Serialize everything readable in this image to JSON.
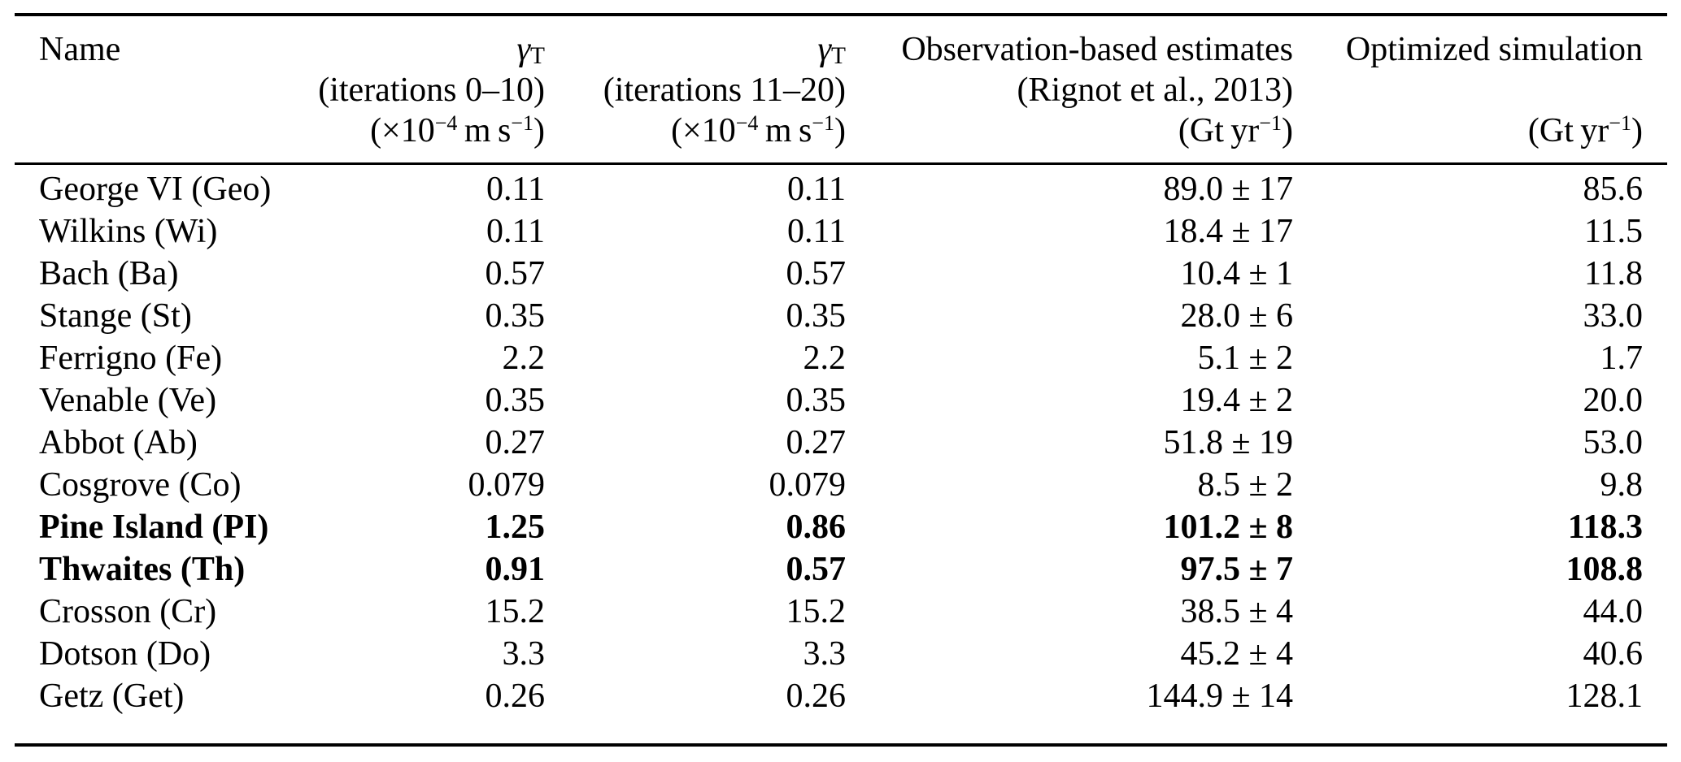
{
  "page": {
    "background": "#ffffff",
    "text_color": "#000000"
  },
  "table": {
    "header": {
      "name": "Name",
      "gamma_symbol": "γ",
      "gamma_sub": "T",
      "col2_line2": "(iterations 0–10)",
      "col3_line2": "(iterations 11–20)",
      "ms_unit_prefix": "(×10",
      "ms_unit_exp1": "−4",
      "ms_unit_mid": " m s",
      "ms_unit_exp2": "−1",
      "ms_unit_close": ")",
      "col4_line1": "Observation-based estimates",
      "col4_line2": "(Rignot et al., 2013)",
      "col5_line1": "Optimized simulation",
      "gt_unit_prefix": "(Gt yr",
      "gt_unit_exp": "−1",
      "gt_unit_close": ")"
    },
    "rows": [
      {
        "name": "George VI (Geo)",
        "gamma_0_10": "0.11",
        "gamma_11_20": "0.11",
        "obs": "89.0 ± 17",
        "sim": "85.6",
        "bold": false
      },
      {
        "name": "Wilkins (Wi)",
        "gamma_0_10": "0.11",
        "gamma_11_20": "0.11",
        "obs": "18.4 ± 17",
        "sim": "11.5",
        "bold": false
      },
      {
        "name": "Bach (Ba)",
        "gamma_0_10": "0.57",
        "gamma_11_20": "0.57",
        "obs": "10.4 ± 1",
        "sim": "11.8",
        "bold": false
      },
      {
        "name": "Stange (St)",
        "gamma_0_10": "0.35",
        "gamma_11_20": "0.35",
        "obs": "28.0 ± 6",
        "sim": "33.0",
        "bold": false
      },
      {
        "name": "Ferrigno (Fe)",
        "gamma_0_10": "2.2",
        "gamma_11_20": "2.2",
        "obs": "5.1 ± 2",
        "sim": "1.7",
        "bold": false
      },
      {
        "name": "Venable (Ve)",
        "gamma_0_10": "0.35",
        "gamma_11_20": "0.35",
        "obs": "19.4 ± 2",
        "sim": "20.0",
        "bold": false
      },
      {
        "name": "Abbot (Ab)",
        "gamma_0_10": "0.27",
        "gamma_11_20": "0.27",
        "obs": "51.8 ± 19",
        "sim": "53.0",
        "bold": false
      },
      {
        "name": "Cosgrove (Co)",
        "gamma_0_10": "0.079",
        "gamma_11_20": "0.079",
        "obs": "8.5 ± 2",
        "sim": "9.8",
        "bold": false
      },
      {
        "name": "Pine Island (PI)",
        "gamma_0_10": "1.25",
        "gamma_11_20": "0.86",
        "obs": "101.2 ± 8",
        "sim": "118.3",
        "bold": true
      },
      {
        "name": "Thwaites (Th)",
        "gamma_0_10": "0.91",
        "gamma_11_20": "0.57",
        "obs": "97.5 ± 7",
        "sim": "108.8",
        "bold": true
      },
      {
        "name": "Crosson (Cr)",
        "gamma_0_10": "15.2",
        "gamma_11_20": "15.2",
        "obs": "38.5 ± 4",
        "sim": "44.0",
        "bold": false
      },
      {
        "name": "Dotson (Do)",
        "gamma_0_10": "3.3",
        "gamma_11_20": "3.3",
        "obs": "45.2 ± 4",
        "sim": "40.6",
        "bold": false
      },
      {
        "name": "Getz (Get)",
        "gamma_0_10": "0.26",
        "gamma_11_20": "0.26",
        "obs": "144.9 ± 14",
        "sim": "128.1",
        "bold": false
      }
    ]
  }
}
